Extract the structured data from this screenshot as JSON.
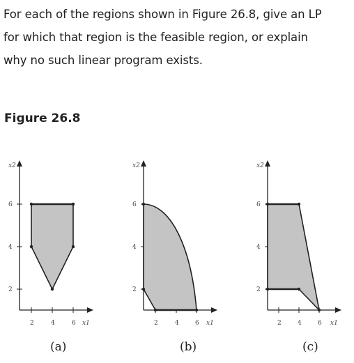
{
  "question": {
    "line1": "For each of the regions shown in Figure 26.8, give an LP",
    "line2": "for which that region is the feasible region, or explain",
    "line3": "why no such linear program exists."
  },
  "figure_title": "Figure 26.8",
  "panels": [
    {
      "label": "(a)",
      "x_axis": "x1",
      "y_axis": "x2",
      "x_ticks": [
        "2",
        "4",
        "6"
      ],
      "y_ticks": [
        "2",
        "4",
        "6"
      ]
    },
    {
      "label": "(b)",
      "x_axis": "x1",
      "y_axis": "x2",
      "x_ticks": [
        "2",
        "4",
        "6"
      ],
      "y_ticks": [
        "2",
        "4",
        "6"
      ]
    },
    {
      "label": "(c)",
      "x_axis": "x1",
      "y_axis": "x2",
      "x_ticks": [
        "2",
        "4",
        "6"
      ],
      "y_ticks": [
        "2",
        "4",
        "6"
      ]
    }
  ],
  "colors": {
    "region_fill": "#c4c4c4",
    "outline": "#222222"
  }
}
